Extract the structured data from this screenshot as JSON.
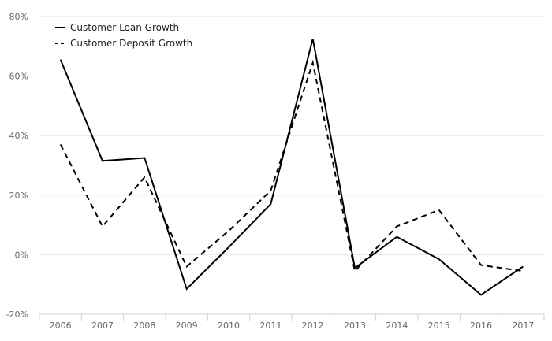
{
  "chart_data": {
    "type": "line",
    "categories": [
      "2006",
      "2007",
      "2008",
      "2009",
      "2010",
      "2011",
      "2012",
      "2013",
      "2014",
      "2015",
      "2016",
      "2017"
    ],
    "series": [
      {
        "name": "Customer Loan Growth",
        "dash": "solid",
        "color": "#000000",
        "values": [
          65.5,
          31.5,
          32.5,
          -11.5,
          2.5,
          17,
          72.5,
          -4.5,
          6,
          -1.5,
          -13.5,
          -4
        ]
      },
      {
        "name": "Customer Deposit Growth",
        "dash": "dashed",
        "color": "#000000",
        "values": [
          37,
          9.5,
          26,
          -4,
          8,
          21.5,
          64.5,
          -5.5,
          9.5,
          15,
          -3.5,
          -5.5
        ]
      }
    ],
    "y_ticks": [
      {
        "value": -20,
        "label": "-20%"
      },
      {
        "value": 0,
        "label": "0%"
      },
      {
        "value": 20,
        "label": "20%"
      },
      {
        "value": 40,
        "label": "40%"
      },
      {
        "value": 60,
        "label": "60%"
      },
      {
        "value": 80,
        "label": "80%"
      }
    ],
    "ylim": [
      -20,
      80
    ],
    "grid": true,
    "legend_position": "top-left",
    "title": "",
    "xlabel": "",
    "ylabel": ""
  }
}
